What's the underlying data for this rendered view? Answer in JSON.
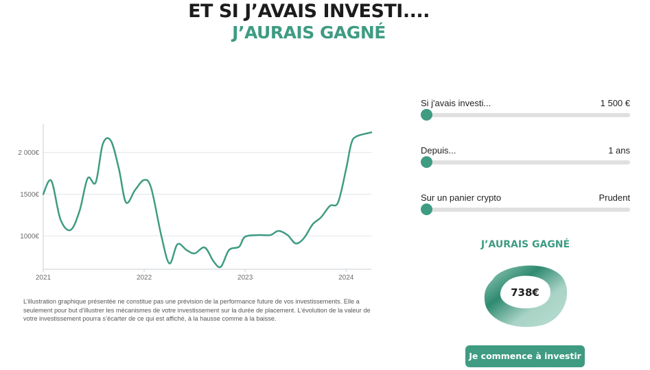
{
  "header": {
    "title": "ET SI J’AVAIS INVESTI....",
    "subtitle": "J’AURAIS GAGNÉ"
  },
  "colors": {
    "accent": "#3f9b82",
    "accent_light": "#a9d3c6",
    "line": "#3f9b82",
    "grid": "#dfe5ea",
    "track": "#e0e0e0",
    "title": "#1c1c1c"
  },
  "controls": [
    {
      "label": "Si j'avais investi...",
      "value": "1 500 €",
      "position": 0
    },
    {
      "label": "Depuis...",
      "value": "1 ans",
      "position": 0
    },
    {
      "label": "Sur un panier crypto",
      "value": "Prudent",
      "position": 0
    }
  ],
  "result": {
    "heading": "J’AURAIS GAGNÉ",
    "value": "738€"
  },
  "cta": {
    "label": "Je commence à investir"
  },
  "disclaimer": "L’illustration graphique présentée ne constitue pas une prévision de la performance future de vos investissements. Elle a seulement pour but d’illustrer les mécanismes de votre investissement sur la durée de placement. L’évolution de la valeur de votre investissement pourra s’écarter de ce qui est affiché, à la hausse comme à la baisse.",
  "chart_data": {
    "type": "line",
    "title": "",
    "xlabel": "",
    "ylabel": "",
    "grid": true,
    "legend": "none",
    "xlim": [
      2021.0,
      2024.25
    ],
    "ylim": [
      600,
      2340
    ],
    "y_ticks": [
      {
        "value": 1000,
        "label": "1000€"
      },
      {
        "value": 1500,
        "label": "1500€"
      },
      {
        "value": 2000,
        "label": "2 000€"
      }
    ],
    "x_ticks": [
      {
        "value": 2021,
        "label": "2021"
      },
      {
        "value": 2022,
        "label": "2022"
      },
      {
        "value": 2023,
        "label": "2023"
      },
      {
        "value": 2024,
        "label": "2024"
      }
    ],
    "series": [
      {
        "name": "",
        "points": [
          [
            2021.0,
            1500
          ],
          [
            2021.08,
            1660
          ],
          [
            2021.17,
            1200
          ],
          [
            2021.27,
            1070
          ],
          [
            2021.36,
            1300
          ],
          [
            2021.44,
            1690
          ],
          [
            2021.52,
            1640
          ],
          [
            2021.59,
            2100
          ],
          [
            2021.67,
            2140
          ],
          [
            2021.75,
            1800
          ],
          [
            2021.82,
            1400
          ],
          [
            2021.91,
            1550
          ],
          [
            2022.0,
            1670
          ],
          [
            2022.07,
            1570
          ],
          [
            2022.17,
            1000
          ],
          [
            2022.25,
            670
          ],
          [
            2022.33,
            900
          ],
          [
            2022.42,
            830
          ],
          [
            2022.5,
            790
          ],
          [
            2022.6,
            860
          ],
          [
            2022.69,
            690
          ],
          [
            2022.76,
            630
          ],
          [
            2022.84,
            830
          ],
          [
            2022.94,
            870
          ],
          [
            2023.0,
            990
          ],
          [
            2023.14,
            1010
          ],
          [
            2023.25,
            1010
          ],
          [
            2023.33,
            1060
          ],
          [
            2023.42,
            1010
          ],
          [
            2023.5,
            910
          ],
          [
            2023.58,
            970
          ],
          [
            2023.67,
            1140
          ],
          [
            2023.75,
            1220
          ],
          [
            2023.84,
            1360
          ],
          [
            2023.92,
            1400
          ],
          [
            2024.0,
            1800
          ],
          [
            2024.05,
            2100
          ],
          [
            2024.1,
            2190
          ],
          [
            2024.25,
            2240
          ]
        ]
      }
    ]
  }
}
